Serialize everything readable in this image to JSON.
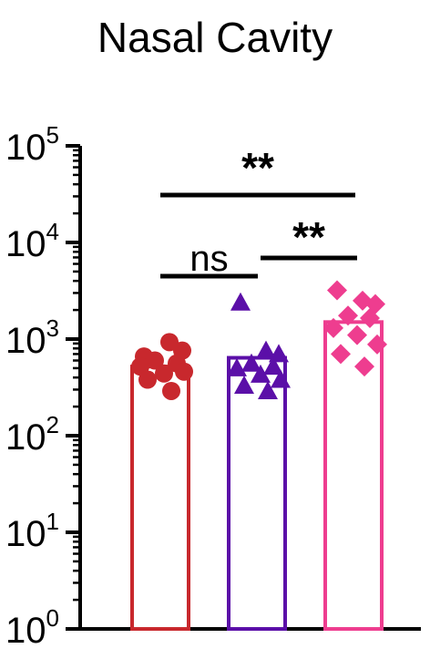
{
  "chart_data": {
    "type": "bar",
    "title": "Nasal Cavity",
    "xlabel": "",
    "ylabel": "",
    "yscale": "log",
    "ylim": [
      1,
      100000
    ],
    "ytick_labels": [
      {
        "base": "10",
        "exp": "0"
      },
      {
        "base": "10",
        "exp": "1"
      },
      {
        "base": "10",
        "exp": "2"
      },
      {
        "base": "10",
        "exp": "3"
      },
      {
        "base": "10",
        "exp": "4"
      },
      {
        "base": "10",
        "exp": "5"
      }
    ],
    "categories": [
      "",
      "",
      ""
    ],
    "bars": [
      {
        "value": 520,
        "color": "#c8282d",
        "marker": "circle",
        "points": [
          660,
          930,
          760,
          600,
          560,
          520,
          440,
          460,
          380,
          290
        ]
      },
      {
        "value": 640,
        "color": "#5b0fa8",
        "marker": "triangle",
        "points": [
          2400,
          760,
          700,
          560,
          520,
          500,
          430,
          380,
          330,
          290
        ]
      },
      {
        "value": 1500,
        "color": "#ee3d8f",
        "marker": "diamond",
        "points": [
          3200,
          2500,
          2300,
          1750,
          1650,
          1300,
          1100,
          880,
          700,
          520
        ]
      }
    ],
    "comparisons": [
      {
        "from": 0,
        "to": 2,
        "label": "**"
      },
      {
        "from": 0,
        "to": 1,
        "label": "ns"
      },
      {
        "from": 1,
        "to": 2,
        "label": "**"
      }
    ],
    "grid": false
  }
}
